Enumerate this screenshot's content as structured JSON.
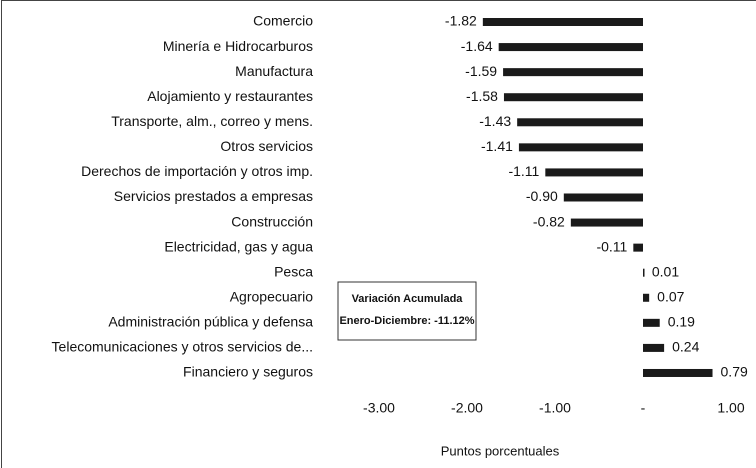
{
  "chart_data": {
    "type": "barh",
    "categories": [
      "Comercio",
      "Minería e Hidrocarburos",
      "Manufactura",
      "Alojamiento y restaurantes",
      "Transporte, alm., correo y mens.",
      "Otros servicios",
      "Derechos de importación y otros imp.",
      "Servicios prestados a empresas",
      "Construcción",
      "Electricidad, gas y agua",
      "Pesca",
      "Agropecuario",
      "Administración pública y defensa",
      "Telecomunicaciones y otros servicios de...",
      "Financiero y seguros"
    ],
    "values": [
      -1.82,
      -1.64,
      -1.59,
      -1.58,
      -1.43,
      -1.41,
      -1.11,
      -0.9,
      -0.82,
      -0.11,
      0.01,
      0.07,
      0.19,
      0.24,
      0.79
    ],
    "value_labels": [
      "-1.82",
      "-1.64",
      "-1.59",
      "-1.58",
      "-1.43",
      "-1.41",
      "-1.11",
      "-0.90",
      "-0.82",
      "-0.11",
      "0.01",
      "0.07",
      "0.19",
      "0.24",
      "0.79"
    ],
    "color": "#1a1a1a",
    "xlim": [
      -3.5,
      1.25
    ],
    "xticks": [
      {
        "value": -3,
        "label": "-3.00"
      },
      {
        "value": -2,
        "label": "-2.00"
      },
      {
        "value": -1,
        "label": "-1.00"
      },
      {
        "value": 0,
        "label": "-"
      },
      {
        "value": 1,
        "label": "1.00"
      }
    ],
    "xlabel": "Puntos porcentuales",
    "annotations": [
      "Variación Acumulada",
      "Enero-Diciembre: -11.12%"
    ]
  }
}
